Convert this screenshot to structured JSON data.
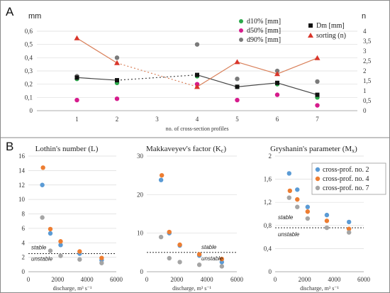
{
  "panels": {
    "a": "A",
    "b": "B"
  },
  "chart_data": [
    {
      "id": "A",
      "type": "scatter",
      "xlabel": "no. of cross-section profiles",
      "y_unit_left": "mm",
      "y_unit_right": "n",
      "x": [
        1,
        2,
        3,
        4,
        5,
        6,
        7
      ],
      "xlim": [
        0,
        8
      ],
      "ylim_left": [
        0,
        0.6
      ],
      "ylim_right": [
        0,
        4
      ],
      "yticks_left": [
        "0",
        "0,1",
        "0,2",
        "0,3",
        "0,4",
        "0,5",
        "0,6"
      ],
      "yticks_right": [
        "0",
        "0,5",
        "1",
        "1,5",
        "2",
        "2,5",
        "3",
        "3,5",
        "4"
      ],
      "xticks": [
        "1",
        "2",
        "3",
        "4",
        "5",
        "6",
        "7"
      ],
      "series": [
        {
          "name": "d10% [mm]",
          "color": "#2ba84a",
          "axis": "left",
          "marker": "circle",
          "points": [
            [
              1,
              0.24
            ],
            [
              2,
              0.21
            ],
            [
              4,
              0.26
            ],
            [
              5,
              0.18
            ],
            [
              6,
              0.2
            ],
            [
              7,
              0.1
            ]
          ]
        },
        {
          "name": "d50% [mm]",
          "color": "#d61b8c",
          "axis": "left",
          "marker": "circle",
          "points": [
            [
              1,
              0.08
            ],
            [
              2,
              0.09
            ],
            [
              4,
              0.2
            ],
            [
              5,
              0.08
            ],
            [
              6,
              0.12
            ],
            [
              7,
              0.04
            ]
          ]
        },
        {
          "name": "d90% [mm]",
          "color": "#7a7a7a",
          "axis": "left",
          "marker": "circle",
          "points": [
            [
              1,
              0.26
            ],
            [
              2,
              0.4
            ],
            [
              4,
              0.5
            ],
            [
              5,
              0.24
            ],
            [
              6,
              0.3
            ],
            [
              7,
              0.22
            ]
          ]
        },
        {
          "name": "Dm [mm]",
          "color": "#111111",
          "axis": "left",
          "marker": "square",
          "line": "#444444",
          "points": [
            [
              1,
              0.25
            ],
            [
              2,
              0.23
            ],
            [
              4,
              0.27
            ],
            [
              5,
              0.18
            ],
            [
              6,
              0.21
            ],
            [
              7,
              0.12
            ]
          ]
        },
        {
          "name": "sorting (n)",
          "color": "#d9352a",
          "axis": "right",
          "marker": "triangle",
          "line": "#d9805a",
          "points": [
            [
              1,
              3.65
            ],
            [
              2,
              2.4
            ],
            [
              4,
              1.2
            ],
            [
              5,
              2.45
            ],
            [
              6,
              1.85
            ],
            [
              7,
              2.65
            ]
          ]
        }
      ]
    },
    {
      "id": "L",
      "type": "scatter",
      "title": "Lothin's number (L)",
      "xlabel": "discharge, m³ s⁻¹",
      "xlim": [
        0,
        6000
      ],
      "ylim": [
        0,
        16
      ],
      "xticks": [
        "0",
        "2000",
        "4000",
        "6000"
      ],
      "yticks": [
        "0",
        "2",
        "4",
        "6",
        "8",
        "10",
        "12",
        "14",
        "16"
      ],
      "threshold": 2.5,
      "stable_label": "stable",
      "unstable_label": "unstable",
      "series": [
        {
          "color": "#5b9bd5",
          "points": [
            [
              950,
              12.0
            ],
            [
              1500,
              5.3
            ],
            [
              2200,
              3.7
            ],
            [
              3500,
              2.5
            ],
            [
              5000,
              1.6
            ]
          ]
        },
        {
          "color": "#ed7d31",
          "points": [
            [
              1000,
              14.4
            ],
            [
              1500,
              5.9
            ],
            [
              2200,
              4.2
            ],
            [
              3500,
              2.8
            ],
            [
              5000,
              1.9
            ]
          ]
        },
        {
          "color": "#a5a5a5",
          "points": [
            [
              950,
              7.5
            ],
            [
              1500,
              2.9
            ],
            [
              2200,
              2.2
            ],
            [
              3500,
              1.7
            ],
            [
              5000,
              1.2
            ]
          ]
        }
      ]
    },
    {
      "id": "K",
      "type": "scatter",
      "title": "Makkaveyev's factor (K",
      "title_sub": "c",
      "title_end": ")",
      "xlabel": "discharge, m³ s⁻¹",
      "xlim": [
        0,
        6000
      ],
      "ylim": [
        0,
        30
      ],
      "xticks": [
        "0",
        "2000",
        "4000",
        "6000"
      ],
      "yticks": [
        "0",
        "10",
        "20",
        "30"
      ],
      "threshold": 5,
      "stable_label": "stable",
      "unstable_label": "unstable",
      "series": [
        {
          "color": "#5b9bd5",
          "points": [
            [
              950,
              23.8
            ],
            [
              1500,
              10.0
            ],
            [
              2200,
              6.8
            ],
            [
              3500,
              4.2
            ],
            [
              5000,
              2.5
            ]
          ]
        },
        {
          "color": "#ed7d31",
          "points": [
            [
              1000,
              25.0
            ],
            [
              1500,
              10.3
            ],
            [
              2200,
              7.0
            ],
            [
              3500,
              4.5
            ],
            [
              5000,
              3.3
            ]
          ]
        },
        {
          "color": "#a5a5a5",
          "points": [
            [
              950,
              9.0
            ],
            [
              1500,
              3.5
            ],
            [
              2200,
              2.5
            ],
            [
              3500,
              1.8
            ],
            [
              5000,
              1.4
            ]
          ]
        }
      ]
    },
    {
      "id": "M",
      "type": "scatter",
      "title": "Gryshanin's parameter (M",
      "title_sub": "x",
      "title_end": ")",
      "xlabel": "discharge, m³ s⁻¹",
      "xlim": [
        0,
        6000
      ],
      "ylim": [
        0,
        2
      ],
      "xticks": [
        "0",
        "2000",
        "4000",
        "6000"
      ],
      "yticks": [
        "0",
        "0,4",
        "0,8",
        "1,2",
        "1,6",
        "2"
      ],
      "threshold": 0.76,
      "stable_label": "stable",
      "unstable_label": "unstable",
      "legend": "top-right",
      "series": [
        {
          "name": "cross-prof. no. 2",
          "color": "#5b9bd5",
          "points": [
            [
              950,
              1.7
            ],
            [
              1500,
              1.42
            ],
            [
              2200,
              1.12
            ],
            [
              3500,
              0.98
            ],
            [
              5000,
              0.86
            ]
          ]
        },
        {
          "name": "cross-prof. no. 4",
          "color": "#ed7d31",
          "points": [
            [
              1000,
              1.4
            ],
            [
              1500,
              1.25
            ],
            [
              2200,
              1.04
            ],
            [
              3500,
              0.88
            ],
            [
              5000,
              0.74
            ]
          ]
        },
        {
          "name": "cross-prof. no. 7",
          "color": "#a5a5a5",
          "points": [
            [
              950,
              1.28
            ],
            [
              1500,
              1.12
            ],
            [
              2200,
              0.92
            ],
            [
              3500,
              0.76
            ],
            [
              5000,
              0.68
            ]
          ]
        }
      ]
    }
  ]
}
